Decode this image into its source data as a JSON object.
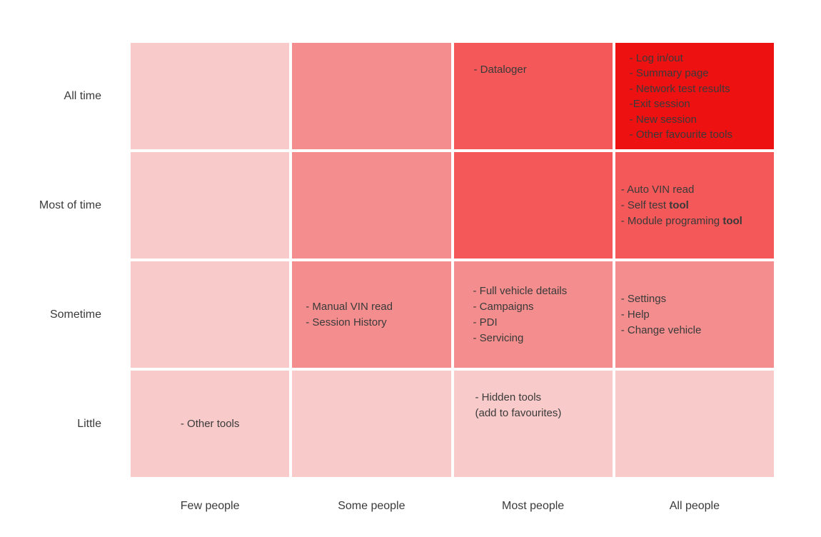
{
  "colors": {
    "background": "#ffffff",
    "intensity_1": "#f8caca",
    "intensity_2": "#f48e8e",
    "intensity_3": "#f45858",
    "intensity_4": "#ee1111",
    "text": "#3a3a3a"
  },
  "labels": {
    "rows": [
      "All time",
      "Most of time",
      "Sometime",
      "Little"
    ],
    "cols": [
      "Few people",
      "Some people",
      "Most people",
      "All people"
    ]
  },
  "chart_data": {
    "type": "heatmap",
    "x_categories": [
      "Few people",
      "Some people",
      "Most people",
      "All people"
    ],
    "y_categories": [
      "All time",
      "Most of time",
      "Sometime",
      "Little"
    ],
    "legend_position": "none",
    "grid": false,
    "intensity_levels": {
      "1": "#f8caca",
      "2": "#f48e8e",
      "3": "#f45858",
      "4": "#ee1111"
    },
    "cells": [
      [
        {
          "level": 1,
          "lines": []
        },
        {
          "level": 2,
          "lines": []
        },
        {
          "level": 3,
          "lines": [
            "- Dataloger"
          ]
        },
        {
          "level": 4,
          "lines": [
            "- Log in/out",
            "- Summary page",
            "- Network test results",
            " -Exit session",
            "- New session",
            "- Other favourite tools"
          ]
        }
      ],
      [
        {
          "level": 1,
          "lines": []
        },
        {
          "level": 2,
          "lines": []
        },
        {
          "level": 3,
          "lines": []
        },
        {
          "level": 3,
          "lines": [
            "- Auto VIN read",
            "- Self test **tool**",
            "- Module programing **tool**"
          ]
        }
      ],
      [
        {
          "level": 1,
          "lines": []
        },
        {
          "level": 2,
          "lines": [
            "- Manual VIN read",
            "- Session History"
          ]
        },
        {
          "level": 2,
          "lines": [
            "- Full vehicle details",
            "- Campaigns",
            "- PDI",
            "- Servicing"
          ]
        },
        {
          "level": 2,
          "lines": [
            "- Settings",
            "- Help",
            "- Change vehicle"
          ]
        }
      ],
      [
        {
          "level": 1,
          "lines": [
            "- Other tools"
          ]
        },
        {
          "level": 1,
          "lines": []
        },
        {
          "level": 1,
          "lines": [
            "- Hidden tools",
            "(add to favourites)"
          ]
        },
        {
          "level": 1,
          "lines": []
        }
      ]
    ]
  }
}
